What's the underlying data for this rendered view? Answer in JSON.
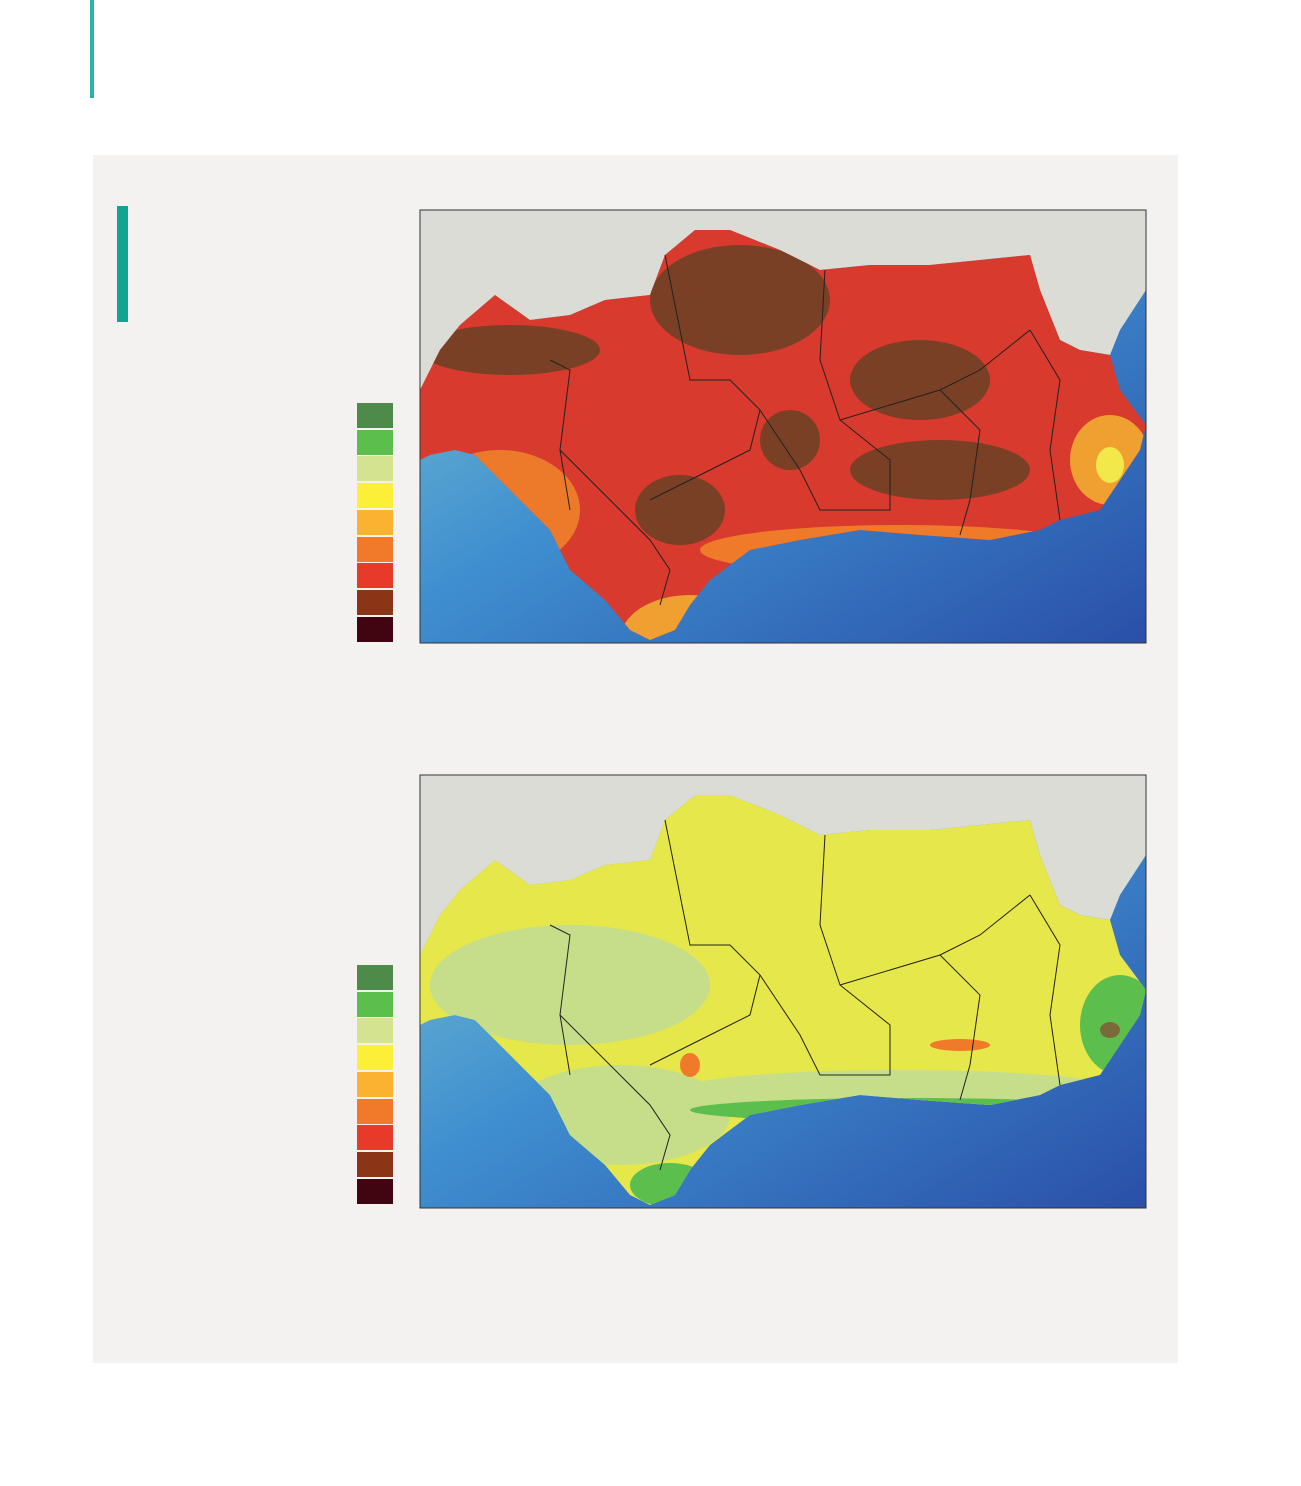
{
  "legends": [
    {
      "colors": [
        "#4e8b4a",
        "#5cbf4d",
        "#d4e38f",
        "#fbef38",
        "#fbb230",
        "#f07a2a",
        "#e83a2a",
        "#8a3516",
        "#400510"
      ]
    },
    {
      "colors": [
        "#4e8b4a",
        "#5cbf4d",
        "#d4e38f",
        "#fbef38",
        "#fbb230",
        "#f07a2a",
        "#e83a2a",
        "#8a3516",
        "#400510"
      ]
    }
  ]
}
